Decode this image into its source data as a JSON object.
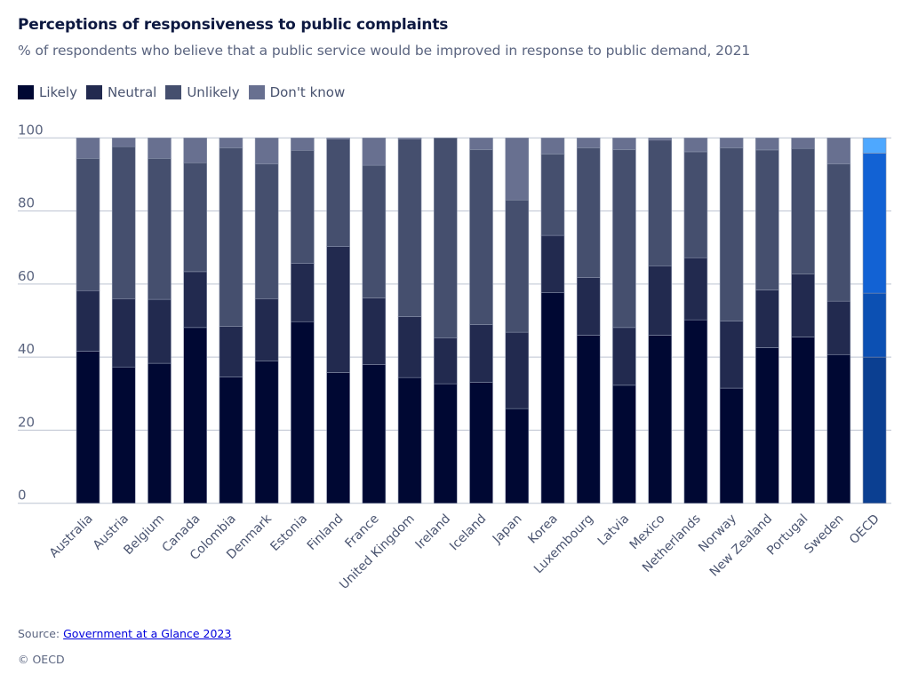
{
  "chart_data": {
    "type": "bar",
    "stacked": true,
    "title": "Perceptions of responsiveness to public complaints",
    "subtitle": "% of respondents who believe that a public service would be improved in response to public demand, 2021",
    "xlabel": "",
    "ylabel": "",
    "ylim": [
      0,
      100
    ],
    "yticks": [
      0,
      20,
      40,
      60,
      80,
      100
    ],
    "grid": true,
    "legend_position": "top-left",
    "categories": [
      "Australia",
      "Austria",
      "Belgium",
      "Canada",
      "Colombia",
      "Denmark",
      "Estonia",
      "Finland",
      "France",
      "United Kingdom",
      "Ireland",
      "Iceland",
      "Japan",
      "Korea",
      "Luxembourg",
      "Latvia",
      "Mexico",
      "Netherlands",
      "Norway",
      "New Zealand",
      "Portugal",
      "Sweden",
      "OECD"
    ],
    "series": [
      {
        "name": "Likely",
        "color": "#000833",
        "values": [
          41.6,
          37.3,
          38.3,
          48.1,
          34.6,
          38.9,
          49.7,
          35.8,
          38.0,
          34.4,
          32.7,
          33.1,
          25.9,
          57.7,
          46.0,
          32.3,
          46.0,
          50.2,
          31.5,
          42.6,
          45.5,
          40.7,
          40.0
        ]
      },
      {
        "name": "Neutral",
        "color": "#222a4f",
        "values": [
          16.6,
          18.7,
          17.5,
          15.3,
          13.8,
          17.1,
          16.0,
          34.5,
          18.2,
          16.7,
          12.6,
          15.8,
          20.9,
          15.6,
          15.8,
          15.8,
          19.0,
          17.0,
          18.4,
          15.8,
          17.3,
          14.6,
          17.5
        ]
      },
      {
        "name": "Unlikely",
        "color": "#454f6e",
        "values": [
          36.2,
          41.6,
          38.6,
          29.8,
          48.9,
          36.9,
          30.9,
          29.4,
          36.3,
          48.6,
          54.7,
          47.9,
          36.2,
          22.3,
          35.5,
          48.7,
          34.4,
          29.0,
          47.4,
          38.3,
          34.3,
          37.6,
          38.3
        ]
      },
      {
        "name": "Don't know",
        "color": "#687090",
        "values": [
          5.6,
          2.4,
          5.6,
          6.8,
          2.7,
          7.1,
          3.4,
          0.3,
          7.5,
          0.3,
          0.0,
          3.2,
          17.0,
          4.4,
          2.7,
          3.2,
          0.6,
          3.8,
          2.7,
          3.3,
          2.9,
          7.1,
          4.2
        ]
      }
    ],
    "highlight": {
      "category": "OECD",
      "colors": [
        "#0b3f91",
        "#0c50b3",
        "#1262d4",
        "#4ea8ff"
      ]
    }
  },
  "footer": {
    "source_prefix": "Source: ",
    "source_link": "Government at a Glance 2023",
    "copyright": "© OECD"
  }
}
